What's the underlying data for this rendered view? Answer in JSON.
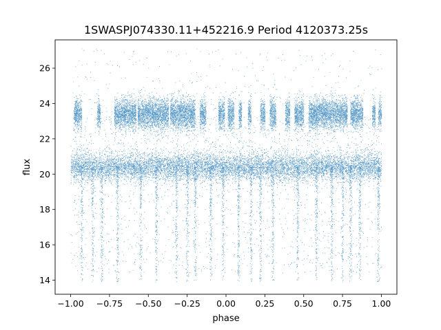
{
  "chart_data": {
    "type": "scatter",
    "title": "1SWASPJ074330.11+452216.9 Period 4120373.25s",
    "xlabel": "phase",
    "ylabel": "flux",
    "xlim": [
      -1.1,
      1.1
    ],
    "ylim": [
      13.2,
      27.6
    ],
    "xticks": [
      -1.0,
      -0.75,
      -0.5,
      -0.25,
      0.0,
      0.25,
      0.5,
      0.75,
      1.0
    ],
    "xtick_labels": [
      "−1.00",
      "−0.75",
      "−0.50",
      "−0.25",
      "0.00",
      "0.25",
      "0.50",
      "0.75",
      "1.00"
    ],
    "yticks": [
      14,
      16,
      18,
      20,
      22,
      24,
      26
    ],
    "ytick_labels": [
      "14",
      "16",
      "18",
      "20",
      "22",
      "24",
      "26"
    ],
    "grid": false,
    "marker_color": "#1f77b4",
    "series": [
      {
        "x_range": [
          -1.0,
          1.0
        ],
        "baseline_flux": 20.4,
        "high_state_flux": 23.4,
        "low_flux_extent": 13.9,
        "high_flux_extent": 27.1,
        "high_state_segments": [
          [
            -0.98,
            -0.93
          ],
          [
            -0.83,
            -0.81
          ],
          [
            -0.72,
            -0.58
          ],
          [
            -0.57,
            -0.37
          ],
          [
            -0.36,
            -0.2
          ],
          [
            -0.17,
            -0.13
          ],
          [
            -0.05,
            -0.01
          ],
          [
            0.01,
            0.05
          ],
          [
            0.08,
            0.1
          ],
          [
            0.14,
            0.16
          ],
          [
            0.22,
            0.25
          ],
          [
            0.28,
            0.32
          ],
          [
            0.38,
            0.41
          ],
          [
            0.44,
            0.5
          ],
          [
            0.53,
            0.78
          ],
          [
            0.8,
            0.88
          ],
          [
            0.94,
            0.96
          ],
          [
            0.98,
            1.0
          ]
        ],
        "dip_phases": [
          -0.93,
          -0.86,
          -0.8,
          -0.7,
          -0.55,
          -0.45,
          -0.32,
          -0.25,
          -0.2,
          -0.1,
          -0.02,
          0.08,
          0.16,
          0.22,
          0.3,
          0.46,
          0.58,
          0.68,
          0.75,
          0.8,
          0.86,
          0.98
        ]
      }
    ]
  }
}
